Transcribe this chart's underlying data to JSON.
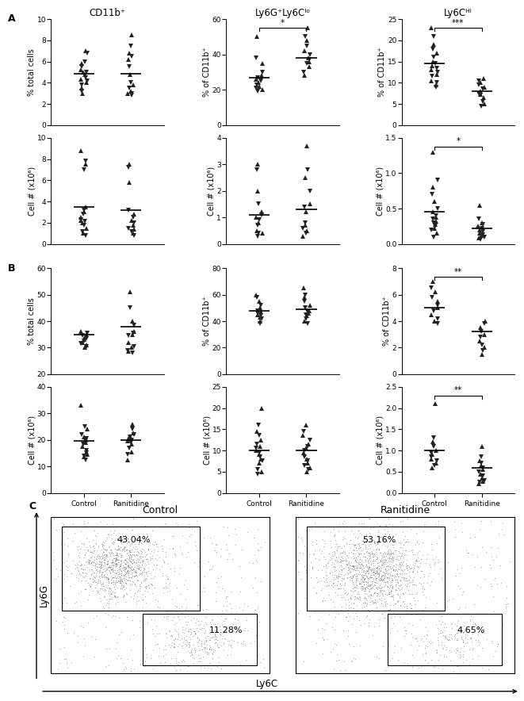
{
  "col_titles": [
    "CD11b⁺",
    "Ly6G⁺Ly6Cᴵᵒ",
    "Ly6Cᴴᴵ"
  ],
  "panel_A_label": "A",
  "panel_B_label": "B",
  "panel_C_label": "C",
  "sig_A_row1": [
    "",
    "*",
    "***"
  ],
  "sig_A_row2": [
    "",
    "",
    "*"
  ],
  "sig_B_row1": [
    "",
    "",
    "**"
  ],
  "sig_B_row2": [
    "",
    "",
    "**"
  ],
  "A_top": {
    "CD11b_ctrl_pct": [
      5.0,
      6.8,
      7.0,
      6.0,
      5.8,
      5.5,
      5.2,
      5.0,
      4.8,
      4.5,
      4.3,
      4.2,
      4.0,
      3.8,
      3.5,
      3.2,
      3.0
    ],
    "CD11b_ran_pct": [
      8.5,
      7.5,
      6.8,
      6.5,
      6.2,
      5.5,
      4.8,
      4.0,
      3.8,
      3.5,
      3.2,
      3.0,
      3.0,
      2.8
    ],
    "CD11b_ctrl_med": 4.85,
    "CD11b_ran_med": 4.85,
    "ylim": [
      0,
      10
    ],
    "yticks": [
      0,
      2,
      4,
      6,
      8,
      10
    ],
    "ylabel": "% total cells",
    "LyGC_ctrl_pct": [
      50.0,
      38.0,
      35.0,
      30.0,
      28.0,
      27.0,
      26.0,
      25.0,
      24.0,
      23.0,
      22.0,
      21.0,
      20.0,
      19.0
    ],
    "LyGC_ran_pct": [
      55.0,
      50.0,
      48.0,
      45.0,
      42.0,
      40.0,
      38.0,
      37.0,
      36.0,
      35.0,
      33.0,
      30.0,
      28.0
    ],
    "LyGC_ctrl_med": 27.0,
    "LyGC_ran_med": 38.0,
    "ylim2": [
      0,
      60
    ],
    "yticks2": [
      0,
      20,
      40,
      60
    ],
    "ylabel2": "% of CD11b⁺",
    "LyC_ctrl_pct": [
      23.0,
      21.0,
      19.0,
      18.0,
      17.0,
      16.0,
      15.0,
      14.5,
      14.0,
      13.5,
      13.0,
      12.5,
      12.0,
      11.5,
      10.5,
      10.0,
      9.5,
      9.0
    ],
    "LyC_ran_pct": [
      11.0,
      10.5,
      10.0,
      9.5,
      9.0,
      8.5,
      8.0,
      7.5,
      7.2,
      7.0,
      6.5,
      5.5,
      5.0,
      4.5
    ],
    "LyC_ctrl_med": 14.5,
    "LyC_ran_med": 8.0,
    "ylim3": [
      0,
      25
    ],
    "yticks3": [
      0,
      5,
      10,
      15,
      20,
      25
    ],
    "ylabel3": "% of CD11b⁺"
  },
  "A_bot": {
    "CD11b_ctrl_cell": [
      8.8,
      7.8,
      7.5,
      7.0,
      3.5,
      3.2,
      3.0,
      2.8,
      2.5,
      2.3,
      2.2,
      2.1,
      2.0,
      1.8,
      1.5,
      1.2,
      1.0,
      0.8
    ],
    "CD11b_ran_cell": [
      7.5,
      7.2,
      5.8,
      3.2,
      2.8,
      2.5,
      2.2,
      2.0,
      1.8,
      1.5,
      1.4,
      1.2,
      1.0,
      0.8
    ],
    "CD11b_ctrl_med": 3.5,
    "CD11b_ran_med": 3.2,
    "ylim": [
      0,
      10
    ],
    "yticks": [
      0,
      2,
      4,
      6,
      8,
      10
    ],
    "ylabel": "Cell # (x10⁶)",
    "LyGC_ctrl_cell": [
      3.0,
      2.8,
      2.0,
      1.5,
      1.2,
      1.1,
      1.0,
      0.9,
      0.8,
      0.7,
      0.5,
      0.4,
      0.4,
      0.3
    ],
    "LyGC_ran_cell": [
      3.7,
      2.8,
      2.5,
      2.0,
      1.5,
      1.4,
      1.2,
      0.8,
      0.7,
      0.6,
      0.5,
      0.4,
      0.3
    ],
    "LyGC_ctrl_med": 1.1,
    "LyGC_ran_med": 1.3,
    "ylim2": [
      0,
      4
    ],
    "yticks2": [
      0,
      1,
      2,
      3,
      4
    ],
    "ylabel2": "Cell # (x10⁶)",
    "LyC_ctrl_cell": [
      1.3,
      0.9,
      0.8,
      0.7,
      0.6,
      0.5,
      0.45,
      0.4,
      0.38,
      0.35,
      0.32,
      0.3,
      0.28,
      0.25,
      0.22,
      0.2,
      0.15,
      0.1
    ],
    "LyC_ran_cell": [
      0.55,
      0.35,
      0.3,
      0.28,
      0.25,
      0.22,
      0.2,
      0.18,
      0.15,
      0.13,
      0.12,
      0.1,
      0.08,
      0.06
    ],
    "LyC_ctrl_med": 0.45,
    "LyC_ran_med": 0.22,
    "ylim3": [
      0,
      1.5
    ],
    "yticks3": [
      0,
      0.5,
      1.0,
      1.5
    ],
    "ylabel3": "Cell # (x10⁶)"
  },
  "B_top": {
    "CD11b_ctrl_pct": [
      36.0,
      35.5,
      35.0,
      34.5,
      34.0,
      33.5,
      33.0,
      32.5,
      32.0,
      31.5,
      31.0,
      30.5,
      30.0
    ],
    "CD11b_ran_pct": [
      51.0,
      45.0,
      40.0,
      38.5,
      36.0,
      35.5,
      35.0,
      34.5,
      32.0,
      30.5,
      30.0,
      29.0,
      28.5,
      28.0
    ],
    "CD11b_ctrl_med": 35.0,
    "CD11b_ran_med": 38.0,
    "ylim": [
      20,
      60
    ],
    "yticks": [
      20,
      30,
      40,
      50,
      60
    ],
    "ylabel": "% total cells",
    "LyGC_ctrl_pct": [
      60.0,
      58.0,
      55.0,
      52.0,
      50.0,
      48.0,
      47.0,
      46.0,
      45.0,
      44.0,
      43.0,
      42.0,
      40.0,
      38.0
    ],
    "LyGC_ran_pct": [
      65.0,
      60.0,
      58.0,
      55.0,
      52.0,
      50.0,
      48.0,
      47.0,
      46.0,
      45.0,
      44.0,
      42.0,
      40.0,
      38.0
    ],
    "LyGC_ctrl_med": 47.5,
    "LyGC_ran_med": 49.0,
    "ylim2": [
      0,
      80
    ],
    "yticks2": [
      0,
      20,
      40,
      60,
      80
    ],
    "ylabel2": "% of CD11b⁺",
    "LyC_ctrl_pct": [
      7.0,
      6.5,
      6.2,
      5.8,
      5.5,
      5.2,
      5.0,
      4.8,
      4.5,
      4.2,
      4.0,
      3.8
    ],
    "LyC_ran_pct": [
      4.0,
      3.8,
      3.5,
      3.2,
      3.0,
      2.8,
      2.5,
      2.2,
      2.0,
      1.8,
      1.5
    ],
    "LyC_ctrl_med": 5.0,
    "LyC_ran_med": 3.2,
    "ylim3": [
      0,
      8
    ],
    "yticks3": [
      0,
      2,
      4,
      6,
      8
    ],
    "ylabel3": "% of CD11b⁺"
  },
  "B_bot": {
    "CD11b_ctrl_cell": [
      33.0,
      25.0,
      24.0,
      22.0,
      21.0,
      20.5,
      20.0,
      19.5,
      19.0,
      18.5,
      17.5,
      16.0,
      15.5,
      15.0,
      14.5,
      14.0,
      13.5,
      12.5
    ],
    "CD11b_ran_cell": [
      26.0,
      24.0,
      22.5,
      22.0,
      21.5,
      21.0,
      20.5,
      20.0,
      19.5,
      19.0,
      18.5,
      17.0,
      15.5,
      14.5,
      12.5
    ],
    "CD11b_ctrl_med": 19.5,
    "CD11b_ran_med": 20.0,
    "ylim": [
      0,
      40
    ],
    "yticks": [
      0,
      10,
      20,
      30,
      40
    ],
    "ylabel": "Cell # (x10⁶)",
    "LyGC_ctrl_cell": [
      20.0,
      16.0,
      14.5,
      13.5,
      12.5,
      11.5,
      11.0,
      10.5,
      10.0,
      9.5,
      9.0,
      8.5,
      8.0,
      7.5,
      7.0,
      5.5,
      5.0,
      4.5
    ],
    "LyGC_ran_cell": [
      16.0,
      14.5,
      13.5,
      12.5,
      11.5,
      11.0,
      10.5,
      10.0,
      9.5,
      8.5,
      8.0,
      7.5,
      7.0,
      6.5,
      6.0,
      5.5,
      5.0
    ],
    "LyGC_ctrl_med": 10.0,
    "LyGC_ran_med": 10.0,
    "ylim2": [
      0,
      25
    ],
    "yticks2": [
      0,
      5,
      10,
      15,
      20,
      25
    ],
    "ylabel2": "Cell # (x10⁶)",
    "LyC_ctrl_cell": [
      2.1,
      1.3,
      1.2,
      1.1,
      1.0,
      0.95,
      0.9,
      0.85,
      0.8,
      0.75,
      0.7,
      0.65,
      0.6
    ],
    "LyC_ran_cell": [
      1.1,
      0.85,
      0.75,
      0.7,
      0.65,
      0.6,
      0.55,
      0.5,
      0.45,
      0.4,
      0.35,
      0.3,
      0.28,
      0.25,
      0.22
    ],
    "LyC_ctrl_med": 1.0,
    "LyC_ran_med": 0.6,
    "ylim3": [
      0,
      2.5
    ],
    "yticks3": [
      0,
      0.5,
      1.0,
      1.5,
      2.0,
      2.5
    ],
    "ylabel3": "Cell # (x10⁶)"
  },
  "flow_labels": {
    "ctrl_pct_top": "43.04%",
    "ctrl_pct_bot": "11.28%",
    "ran_pct_top": "53.16%",
    "ran_pct_bot": "4.65%",
    "xlabel": "Ly6C",
    "ylabel": "Ly6G",
    "ctrl_title": "Control",
    "ran_title": "Ranitidine"
  },
  "marker_up": "^",
  "marker_down": "v",
  "marker_size": 4,
  "marker_color": "#222222",
  "line_color": "#000000",
  "line_lw": 1.2,
  "ylabel_fontsize": 7,
  "tick_fontsize": 6.5,
  "col_title_fontsize": 8.5,
  "panel_label_fontsize": 9
}
